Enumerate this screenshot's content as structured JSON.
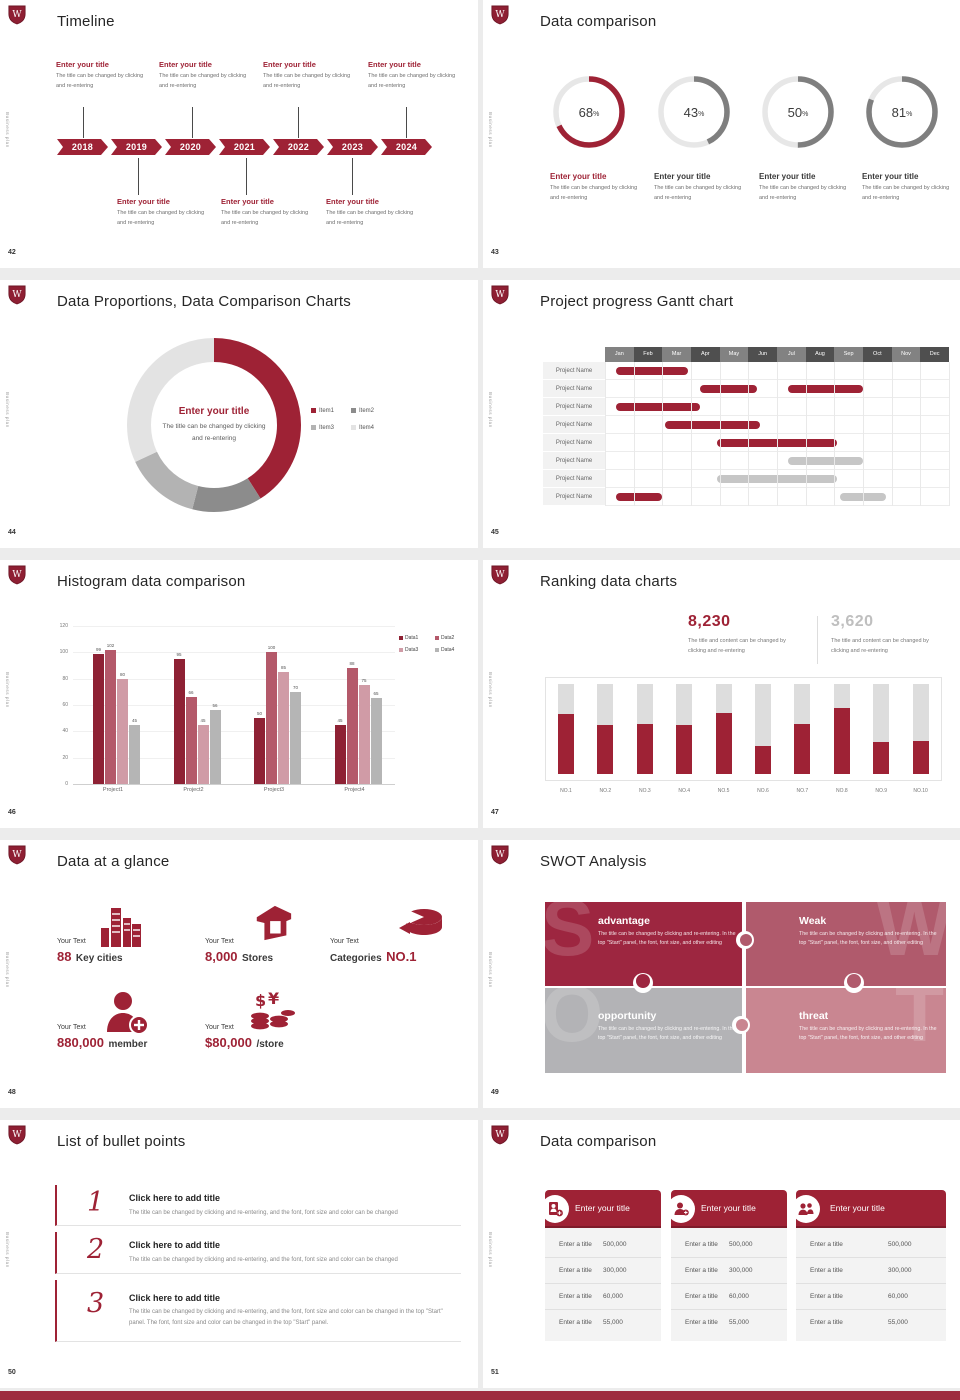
{
  "theme": {
    "accent": "#9e2235",
    "accent_dark": "#7e1b2a",
    "rose": "#b4596a",
    "rose_light": "#d09ba6",
    "gray": "#7f7f7f",
    "gray_light": "#b5b5b5",
    "track": "#e7e7e7",
    "footer": "#9e2b3e"
  },
  "common": {
    "logo_letter": "W",
    "sidebar_text": "Business plan",
    "placeholder_title": "Enter your title",
    "placeholder_body": "The title can be changed by clicking and re-entering"
  },
  "slides": {
    "timeline": {
      "number": "42",
      "title": "Timeline",
      "years": [
        "2018",
        "2019",
        "2020",
        "2021",
        "2022",
        "2023",
        "2024"
      ]
    },
    "rings": {
      "number": "43",
      "title": "Data comparison",
      "unit": "%",
      "values": [
        "68",
        "43",
        "50",
        "81"
      ]
    },
    "proportions": {
      "number": "44",
      "title": "Data Proportions, Data Comparison Charts",
      "center_title": "Enter your title",
      "center_body": "The title can be changed by clicking and re-entering"
    },
    "gantt": {
      "number": "45",
      "title": "Project progress Gantt chart",
      "row_label": "Project Name"
    },
    "histogram": {
      "number": "46",
      "title": "Histogram data comparison"
    },
    "ranking": {
      "number": "47",
      "title": "Ranking data charts",
      "stat_primary": "8,230",
      "stat_secondary": "3,620",
      "stat_desc": "The title and content can be changed by clicking and re-entering"
    },
    "glance": {
      "number": "48",
      "title": "Data at a glance",
      "label": "Your Text",
      "items": [
        {
          "value": "88",
          "text": "Key cities",
          "icon": "city-icon"
        },
        {
          "value": "8,000",
          "text": "Stores",
          "icon": "store-icon"
        },
        {
          "prefix": "Categories",
          "value": "NO.1",
          "icon": "cheese-wheel-icon"
        },
        {
          "value": "880,000",
          "text": "member",
          "icon": "member-add-icon"
        },
        {
          "value": "$80,000",
          "text": "/store",
          "icon": "coins-icon"
        }
      ]
    },
    "swot": {
      "number": "49",
      "title": "SWOT Analysis",
      "body": "The title can be changed by clicking and re-entering. In the top \"Start\" panel, the font, font size, and other editing",
      "quads": [
        {
          "letter": "S",
          "heading": "advantage",
          "color": "#9d2640"
        },
        {
          "letter": "W",
          "heading": "Weak",
          "color": "#b05a6c"
        },
        {
          "letter": "O",
          "heading": "opportunity",
          "color": "#b3b3b6"
        },
        {
          "letter": "T",
          "heading": "threat",
          "color": "#c98691"
        }
      ]
    },
    "bullets": {
      "number": "50",
      "title": "List of bullet points",
      "items": [
        {
          "num": "1",
          "title": "Click here to add title",
          "desc": "The title can be changed by clicking and re-entering, and the font, font size and color can be changed"
        },
        {
          "num": "2",
          "title": "Click here to add title",
          "desc": "The title can be changed by clicking and re-entering, and the font, font size and color can be changed"
        },
        {
          "num": "3",
          "title": "Click here to add title",
          "desc": "The title can be changed by clicking and re-entering, and the font, font size and color can be changed in the top \"Start\" panel. The font, font size and color can be changed in the top \"Start\" panel."
        }
      ]
    },
    "cards": {
      "number": "51",
      "title": "Data comparison",
      "card_title": "Enter your title",
      "row_label": "Enter a title",
      "values": [
        "500,000",
        "300,000",
        "60,000",
        "55,000"
      ],
      "icons": [
        "badge-person-add-icon",
        "person-add-icon",
        "people-icon"
      ]
    }
  },
  "chart_data": [
    {
      "type": "donut-gauge",
      "slide": "43",
      "values": [
        68,
        43,
        50,
        81
      ],
      "unit": "%",
      "colors": [
        "#9e2235",
        "#7f7f7f",
        "#7f7f7f",
        "#7f7f7f"
      ],
      "track": "#e7e7e7"
    },
    {
      "type": "pie",
      "slide": "44",
      "labels": [
        "Item1",
        "Item2",
        "Item3",
        "Item4"
      ],
      "values": [
        41,
        13,
        14,
        32
      ],
      "colors": [
        "#9e2235",
        "#8c8c8c",
        "#b3b3b3",
        "#e3e3e3"
      ],
      "legend_position": "right"
    },
    {
      "type": "gantt",
      "slide": "45",
      "months": [
        "Jan",
        "Feb",
        "Mar",
        "Apr",
        "May",
        "Jun",
        "Jul",
        "Aug",
        "Sep",
        "Oct",
        "Nov",
        "Dec"
      ],
      "rows": [
        {
          "bars": [
            [
              0.4,
              2.9,
              "r"
            ]
          ]
        },
        {
          "bars": [
            [
              3.3,
              5.3,
              "r"
            ],
            [
              6.4,
              9.0,
              "r"
            ]
          ]
        },
        {
          "bars": [
            [
              0.4,
              3.3,
              "r"
            ]
          ]
        },
        {
          "bars": [
            [
              2.1,
              5.4,
              "r"
            ]
          ]
        },
        {
          "bars": [
            [
              3.9,
              8.1,
              "r"
            ]
          ]
        },
        {
          "bars": [
            [
              6.4,
              9.0,
              "g"
            ]
          ]
        },
        {
          "bars": [
            [
              3.9,
              8.1,
              "g"
            ]
          ]
        },
        {
          "bars": [
            [
              0.4,
              2.0,
              "r"
            ],
            [
              8.2,
              9.8,
              "g"
            ]
          ]
        }
      ]
    },
    {
      "type": "bar",
      "slide": "46",
      "title": "Histogram data comparison",
      "categories": [
        "Project1",
        "Project2",
        "Project3",
        "Project4"
      ],
      "series": [
        {
          "name": "Data1",
          "color": "#8e2134",
          "values": [
            99,
            95,
            50,
            45
          ]
        },
        {
          "name": "Data2",
          "color": "#b4596a",
          "values": [
            102,
            66,
            100,
            88
          ]
        },
        {
          "name": "Data3",
          "color": "#d09ba6",
          "values": [
            80,
            45,
            85,
            75
          ]
        },
        {
          "name": "Data4",
          "color": "#b5b5b5",
          "values": [
            45,
            56,
            70,
            65
          ]
        }
      ],
      "ylim": [
        0,
        120
      ],
      "yticks": [
        0,
        20,
        40,
        60,
        80,
        100,
        120
      ],
      "grid": true,
      "legend_position": "top-right"
    },
    {
      "type": "bar",
      "slide": "47",
      "categories": [
        "NO.1",
        "NO.2",
        "NO.3",
        "NO.4",
        "NO.5",
        "NO.6",
        "NO.7",
        "NO.8",
        "NO.9",
        "NO.10"
      ],
      "values_pct": [
        67,
        54,
        56,
        55,
        68,
        31,
        56,
        73,
        36,
        37
      ],
      "bar_color": "#9e2235",
      "track_color": "#dddddd"
    }
  ]
}
